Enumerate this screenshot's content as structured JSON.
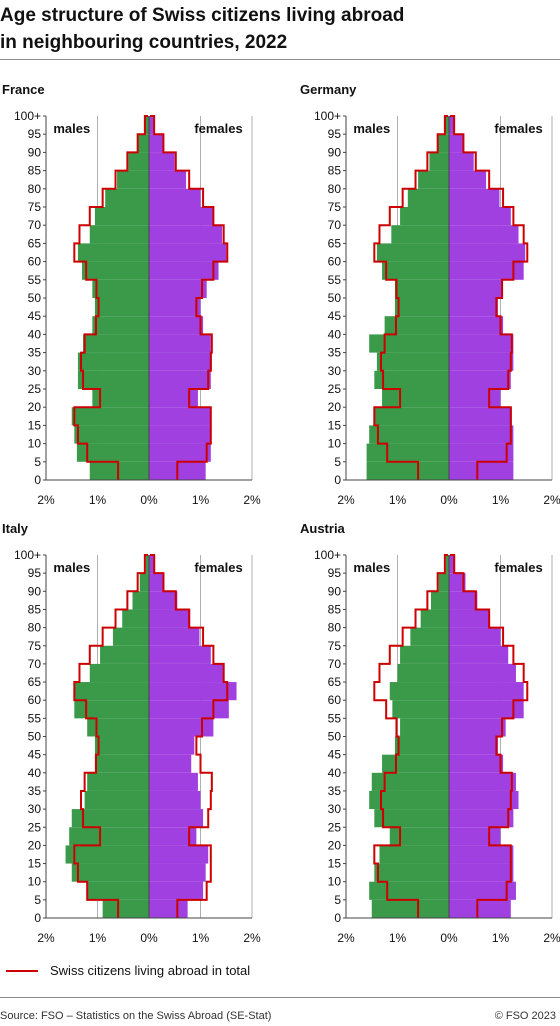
{
  "header": {
    "title_line1": "Age structure of Swiss citizens living abroad",
    "title_line2": "in neighbouring countries, 2022"
  },
  "colors": {
    "males": "#3a9a4a",
    "females": "#a040e0",
    "total_line": "#cc0000",
    "grid": "#b0b0b0",
    "axis": "#444444"
  },
  "legend": {
    "total_label": "Swiss citizens living abroad in total"
  },
  "footer": {
    "source": "Source: FSO – Statistics on the Swiss Abroad (SE-Stat)",
    "copyright": "© FSO 2023"
  },
  "chart_data": [
    {
      "type": "population-pyramid",
      "title": "France",
      "left_label": "males",
      "right_label": "females",
      "y_tick_labels": [
        "0",
        "5",
        "10",
        "15",
        "20",
        "25",
        "30",
        "35",
        "40",
        "45",
        "50",
        "55",
        "60",
        "65",
        "70",
        "75",
        "80",
        "85",
        "90",
        "95",
        "100+"
      ],
      "x_tick_labels": [
        "2%",
        "1%",
        "0%",
        "1%",
        "2%"
      ],
      "xlim_percent": [
        -2,
        2
      ],
      "age_groups": [
        0,
        5,
        10,
        15,
        20,
        25,
        30,
        35,
        40,
        45,
        50,
        55,
        60,
        65,
        70,
        75,
        80,
        85,
        90,
        95,
        100
      ],
      "male_percent": [
        1.15,
        1.4,
        1.45,
        1.5,
        1.1,
        1.38,
        1.38,
        1.28,
        1.1,
        1.05,
        1.1,
        1.3,
        1.38,
        1.15,
        1.05,
        0.85,
        0.62,
        0.4,
        0.22,
        0.08,
        0.02
      ],
      "female_percent": [
        1.1,
        1.2,
        1.2,
        1.2,
        0.95,
        1.2,
        1.22,
        1.2,
        1.05,
        1.0,
        1.12,
        1.35,
        1.5,
        1.42,
        1.25,
        1.0,
        0.72,
        0.5,
        0.27,
        0.1,
        0.02
      ],
      "total_male_percent": [
        0.6,
        1.2,
        1.38,
        1.45,
        0.95,
        1.28,
        1.32,
        1.25,
        1.03,
        0.98,
        1.02,
        1.22,
        1.45,
        1.35,
        1.15,
        0.9,
        0.65,
        0.42,
        0.22,
        0.08,
        0.02
      ],
      "total_female_percent": [
        0.55,
        1.12,
        1.2,
        1.2,
        0.78,
        1.15,
        1.2,
        1.22,
        1.0,
        0.92,
        1.03,
        1.25,
        1.52,
        1.45,
        1.25,
        1.05,
        0.78,
        0.52,
        0.28,
        0.1,
        0.02
      ]
    },
    {
      "type": "population-pyramid",
      "title": "Germany",
      "left_label": "males",
      "right_label": "females",
      "y_tick_labels": [
        "0",
        "5",
        "10",
        "15",
        "20",
        "25",
        "30",
        "35",
        "40",
        "45",
        "50",
        "55",
        "60",
        "65",
        "70",
        "75",
        "80",
        "85",
        "90",
        "95",
        "100+"
      ],
      "x_tick_labels": [
        "2%",
        "1%",
        "0%",
        "1%",
        "2%"
      ],
      "xlim_percent": [
        -2,
        2
      ],
      "age_groups": [
        0,
        5,
        10,
        15,
        20,
        25,
        30,
        35,
        40,
        45,
        50,
        55,
        60,
        65,
        70,
        75,
        80,
        85,
        90,
        95,
        100
      ],
      "male_percent": [
        1.6,
        1.6,
        1.55,
        1.45,
        1.3,
        1.45,
        1.4,
        1.55,
        1.25,
        1.05,
        1.05,
        1.3,
        1.4,
        1.12,
        0.95,
        0.8,
        0.6,
        0.38,
        0.22,
        0.08,
        0.02
      ],
      "female_percent": [
        1.25,
        1.25,
        1.25,
        1.22,
        1.0,
        1.2,
        1.25,
        1.25,
        1.05,
        0.95,
        1.05,
        1.45,
        1.48,
        1.35,
        1.2,
        0.98,
        0.72,
        0.48,
        0.28,
        0.1,
        0.02
      ],
      "total_male_percent": [
        0.6,
        1.2,
        1.38,
        1.45,
        0.95,
        1.28,
        1.32,
        1.25,
        1.03,
        0.98,
        1.02,
        1.22,
        1.45,
        1.35,
        1.15,
        0.9,
        0.65,
        0.42,
        0.22,
        0.08,
        0.02
      ],
      "total_female_percent": [
        0.55,
        1.12,
        1.2,
        1.2,
        0.78,
        1.15,
        1.2,
        1.22,
        1.0,
        0.92,
        1.03,
        1.25,
        1.52,
        1.45,
        1.25,
        1.05,
        0.78,
        0.52,
        0.28,
        0.1,
        0.02
      ]
    },
    {
      "type": "population-pyramid",
      "title": "Italy",
      "left_label": "males",
      "right_label": "females",
      "y_tick_labels": [
        "0",
        "5",
        "10",
        "15",
        "20",
        "25",
        "30",
        "35",
        "40",
        "45",
        "50",
        "55",
        "60",
        "65",
        "70",
        "75",
        "80",
        "85",
        "90",
        "95",
        "100+"
      ],
      "x_tick_labels": [
        "2%",
        "1%",
        "0%",
        "1%",
        "2%"
      ],
      "xlim_percent": [
        -2,
        2
      ],
      "age_groups": [
        0,
        5,
        10,
        15,
        20,
        25,
        30,
        35,
        40,
        45,
        50,
        55,
        60,
        65,
        70,
        75,
        80,
        85,
        90,
        95,
        100
      ],
      "male_percent": [
        0.9,
        1.2,
        1.5,
        1.62,
        1.55,
        1.5,
        1.25,
        1.2,
        1.05,
        1.05,
        1.2,
        1.45,
        1.45,
        1.15,
        0.95,
        0.7,
        0.52,
        0.32,
        0.18,
        0.06,
        0.02
      ],
      "female_percent": [
        0.75,
        1.05,
        1.1,
        1.15,
        0.92,
        1.05,
        1.0,
        0.95,
        0.82,
        0.88,
        1.25,
        1.55,
        1.7,
        1.45,
        1.2,
        0.98,
        0.8,
        0.55,
        0.3,
        0.12,
        0.03
      ],
      "total_male_percent": [
        0.6,
        1.2,
        1.38,
        1.45,
        0.95,
        1.28,
        1.32,
        1.25,
        1.03,
        0.98,
        1.02,
        1.22,
        1.45,
        1.35,
        1.15,
        0.9,
        0.65,
        0.42,
        0.22,
        0.08,
        0.02
      ],
      "total_female_percent": [
        0.55,
        1.12,
        1.2,
        1.2,
        0.78,
        1.15,
        1.2,
        1.22,
        1.0,
        0.92,
        1.03,
        1.25,
        1.52,
        1.45,
        1.25,
        1.05,
        0.78,
        0.52,
        0.28,
        0.1,
        0.02
      ]
    },
    {
      "type": "population-pyramid",
      "title": "Austria",
      "left_label": "males",
      "right_label": "females",
      "y_tick_labels": [
        "0",
        "5",
        "10",
        "15",
        "20",
        "25",
        "30",
        "35",
        "40",
        "45",
        "50",
        "55",
        "60",
        "65",
        "70",
        "75",
        "80",
        "85",
        "90",
        "95",
        "100+"
      ],
      "x_tick_labels": [
        "2%",
        "1%",
        "0%",
        "1%",
        "2%"
      ],
      "xlim_percent": [
        -2,
        2
      ],
      "age_groups": [
        0,
        5,
        10,
        15,
        20,
        25,
        30,
        35,
        40,
        45,
        50,
        55,
        60,
        65,
        70,
        75,
        80,
        85,
        90,
        95,
        100
      ],
      "male_percent": [
        1.5,
        1.55,
        1.45,
        1.35,
        1.15,
        1.45,
        1.55,
        1.5,
        1.3,
        1.05,
        0.95,
        1.1,
        1.15,
        1.0,
        0.95,
        0.75,
        0.55,
        0.35,
        0.2,
        0.06,
        0.02
      ],
      "female_percent": [
        1.2,
        1.3,
        1.25,
        1.25,
        1.0,
        1.25,
        1.35,
        1.3,
        1.05,
        0.95,
        1.1,
        1.45,
        1.45,
        1.3,
        1.15,
        1.0,
        0.78,
        0.55,
        0.32,
        0.12,
        0.03
      ],
      "total_male_percent": [
        0.6,
        1.2,
        1.38,
        1.45,
        0.95,
        1.28,
        1.32,
        1.25,
        1.03,
        0.98,
        1.02,
        1.22,
        1.45,
        1.35,
        1.15,
        0.9,
        0.65,
        0.42,
        0.22,
        0.08,
        0.02
      ],
      "total_female_percent": [
        0.55,
        1.12,
        1.2,
        1.2,
        0.78,
        1.15,
        1.2,
        1.22,
        1.0,
        0.92,
        1.03,
        1.25,
        1.52,
        1.45,
        1.25,
        1.05,
        0.78,
        0.52,
        0.28,
        0.1,
        0.02
      ]
    }
  ]
}
